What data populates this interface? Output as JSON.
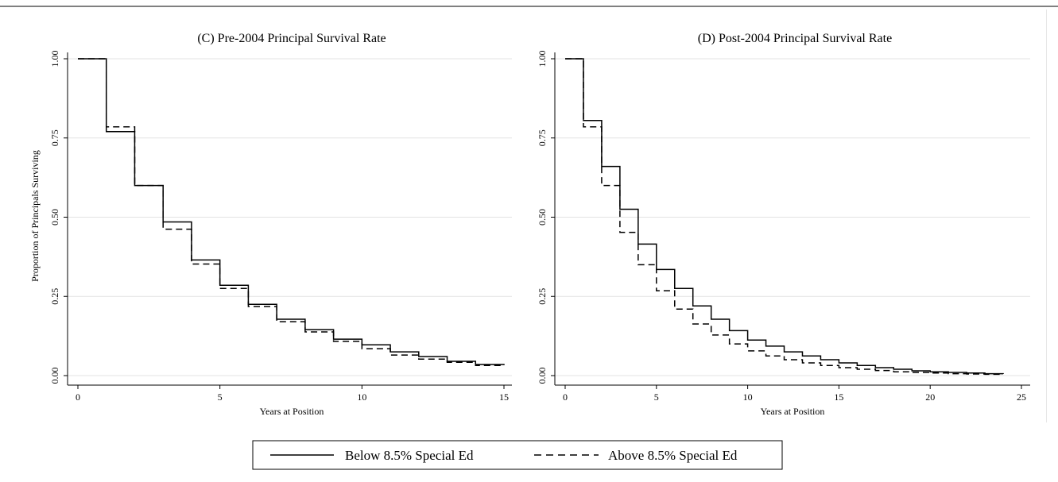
{
  "chart_data": [
    {
      "type": "line",
      "title": "(C) Pre-2004 Principal Survival Rate",
      "xlabel": "Years at Position",
      "ylabel": "Proportion of Principals Surviving",
      "xlim": [
        0,
        15
      ],
      "ylim": [
        0,
        1
      ],
      "xticks": [
        "0",
        "5",
        "10",
        "15"
      ],
      "yticks": [
        "0.00",
        "0.25",
        "0.50",
        "0.75",
        "1.00"
      ],
      "grid": "horizontal",
      "step": true,
      "series": [
        {
          "name": "Below 8.5% Special Ed",
          "style": "solid",
          "x": [
            0,
            1,
            2,
            3,
            4,
            5,
            6,
            7,
            8,
            9,
            10,
            11,
            12,
            13,
            14,
            15
          ],
          "y": [
            1.0,
            0.77,
            0.6,
            0.485,
            0.365,
            0.285,
            0.225,
            0.178,
            0.145,
            0.115,
            0.097,
            0.075,
            0.06,
            0.045,
            0.035,
            0.033
          ]
        },
        {
          "name": "Above 8.5% Special Ed",
          "style": "dashed",
          "x": [
            0,
            1,
            2,
            3,
            4,
            5,
            6,
            7,
            8,
            9,
            10,
            11,
            12,
            13,
            14,
            15
          ],
          "y": [
            1.0,
            0.785,
            0.6,
            0.462,
            0.352,
            0.275,
            0.218,
            0.17,
            0.138,
            0.108,
            0.085,
            0.065,
            0.052,
            0.042,
            0.032,
            0.03
          ]
        }
      ]
    },
    {
      "type": "line",
      "title": "(D) Post-2004  Principal Survival Rate",
      "xlabel": "Years at Position",
      "ylabel": "",
      "xlim": [
        0,
        25
      ],
      "ylim": [
        0,
        1
      ],
      "xticks": [
        "0",
        "5",
        "10",
        "15",
        "20",
        "25"
      ],
      "yticks": [
        "0.00",
        "0.25",
        "0.50",
        "0.75",
        "1.00"
      ],
      "grid": "horizontal",
      "step": true,
      "series": [
        {
          "name": "Below 8.5% Special Ed",
          "style": "solid",
          "x": [
            0,
            1,
            2,
            3,
            4,
            5,
            6,
            7,
            8,
            9,
            10,
            11,
            12,
            13,
            14,
            15,
            16,
            17,
            18,
            19,
            20,
            21,
            22,
            23,
            24
          ],
          "y": [
            1.0,
            0.805,
            0.66,
            0.525,
            0.415,
            0.335,
            0.275,
            0.22,
            0.178,
            0.142,
            0.112,
            0.093,
            0.075,
            0.062,
            0.05,
            0.04,
            0.032,
            0.025,
            0.02,
            0.015,
            0.012,
            0.01,
            0.008,
            0.006,
            0.005
          ]
        },
        {
          "name": "Above 8.5% Special Ed",
          "style": "dashed",
          "x": [
            0,
            1,
            2,
            3,
            4,
            5,
            6,
            7,
            8,
            9,
            10,
            11,
            12,
            13,
            14,
            15,
            16,
            17,
            18,
            19,
            20,
            21,
            22,
            23,
            24
          ],
          "y": [
            1.0,
            0.785,
            0.6,
            0.452,
            0.35,
            0.268,
            0.21,
            0.163,
            0.128,
            0.1,
            0.078,
            0.062,
            0.05,
            0.04,
            0.032,
            0.025,
            0.02,
            0.016,
            0.012,
            0.01,
            0.008,
            0.006,
            0.005,
            0.004,
            0.003
          ]
        }
      ]
    }
  ],
  "legend": {
    "placement": "bottom",
    "items": [
      {
        "label": "Below 8.5% Special Ed",
        "style": "solid"
      },
      {
        "label": "Above 8.5% Special Ed",
        "style": "dashed"
      }
    ]
  }
}
